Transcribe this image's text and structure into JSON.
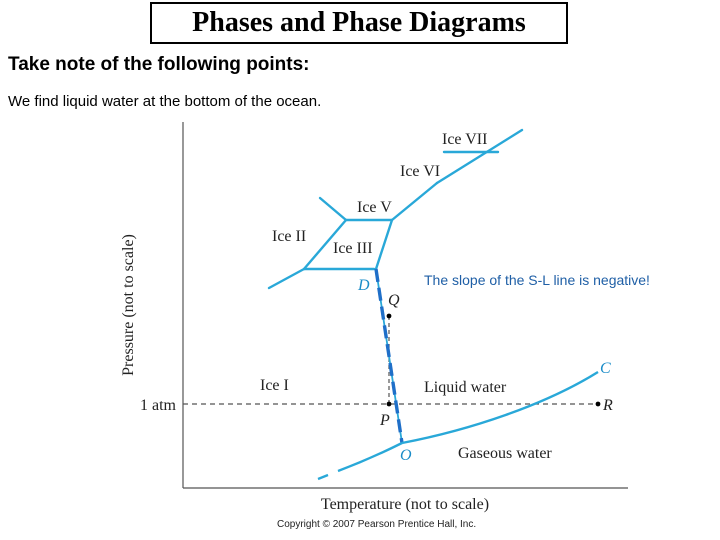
{
  "slide": {
    "title": "Phases and Phase Diagrams",
    "heading": "Take note of the following points:",
    "note": "We find liquid water at the bottom of the ocean.",
    "callout": "The slope of the S-L line is negative!",
    "copyright": "Copyright © 2007 Pearson Prentice Hall, Inc."
  },
  "diagram": {
    "y_axis_label": "Pressure (not to scale)",
    "x_axis_label": "Temperature (not to scale)",
    "tick_1atm": "1 atm",
    "regions": {
      "ice_vii": "Ice VII",
      "ice_vi": "Ice VI",
      "ice_v": "Ice V",
      "ice_ii": "Ice II",
      "ice_iii": "Ice III",
      "ice_i": "Ice I",
      "liquid": "Liquid water",
      "gas": "Gaseous water"
    },
    "points": {
      "D": "D",
      "Q": "Q",
      "P": "P",
      "O": "O",
      "C": "C",
      "R": "R"
    },
    "colors": {
      "phase_line": "#29a8d8",
      "highlight_line": "#1f6fc8",
      "point_label": "#1a8cc8",
      "axis": "#555555"
    }
  }
}
